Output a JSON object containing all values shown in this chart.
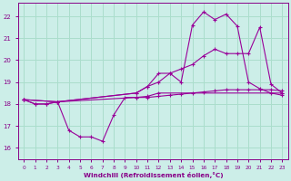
{
  "bg_color": "#cceee8",
  "grid_color": "#aaddcc",
  "line_color": "#990099",
  "xlabel": "Windchill (Refroidissement éolien,°C)",
  "xlabel_color": "#880088",
  "tick_color": "#880088",
  "ylim": [
    15.5,
    22.6
  ],
  "xlim": [
    -0.5,
    23.5
  ],
  "yticks": [
    16,
    17,
    18,
    19,
    20,
    21,
    22
  ],
  "xticks": [
    0,
    1,
    2,
    3,
    4,
    5,
    6,
    7,
    8,
    9,
    10,
    11,
    12,
    13,
    14,
    15,
    16,
    17,
    18,
    19,
    20,
    21,
    22,
    23
  ],
  "series": [
    {
      "x": [
        0,
        1,
        2,
        3,
        4,
        5,
        6,
        7,
        8,
        9,
        10,
        11,
        12,
        23
      ],
      "y": [
        18.2,
        18.0,
        18.0,
        18.1,
        16.8,
        16.5,
        16.5,
        16.3,
        17.5,
        18.3,
        18.3,
        18.35,
        18.5,
        18.5
      ]
    },
    {
      "x": [
        0,
        1,
        2,
        3,
        10,
        11,
        12,
        13,
        14,
        15,
        16,
        17,
        18,
        19,
        20,
        21,
        22,
        23
      ],
      "y": [
        18.2,
        18.0,
        18.0,
        18.1,
        18.3,
        18.3,
        18.35,
        18.4,
        18.45,
        18.5,
        18.55,
        18.6,
        18.65,
        18.65,
        18.65,
        18.65,
        18.65,
        18.6
      ]
    },
    {
      "x": [
        0,
        3,
        10,
        11,
        12,
        13,
        14,
        15,
        16,
        17,
        18,
        19,
        20,
        21,
        22,
        23
      ],
      "y": [
        18.2,
        18.1,
        18.5,
        18.8,
        19.4,
        19.4,
        19.0,
        21.6,
        22.2,
        21.85,
        22.1,
        21.55,
        19.0,
        18.7,
        18.5,
        18.4
      ]
    },
    {
      "x": [
        0,
        3,
        10,
        11,
        12,
        13,
        14,
        15,
        16,
        17,
        18,
        19,
        20,
        21,
        22,
        23
      ],
      "y": [
        18.2,
        18.1,
        18.5,
        18.8,
        19.0,
        19.4,
        19.6,
        19.8,
        20.2,
        20.5,
        20.3,
        20.3,
        20.3,
        21.5,
        18.9,
        18.5
      ]
    }
  ]
}
